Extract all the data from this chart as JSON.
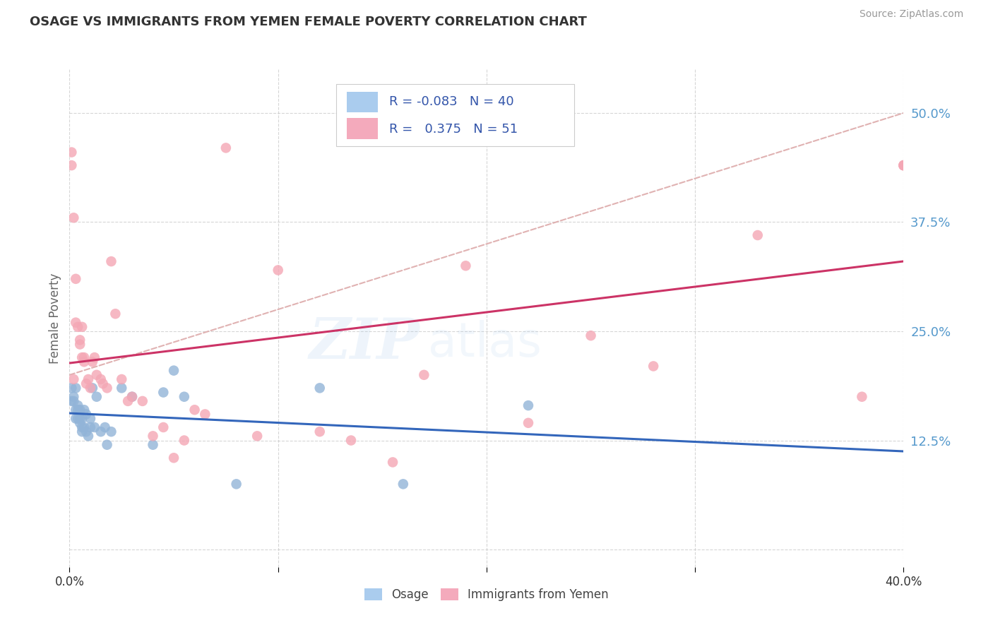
{
  "title": "OSAGE VS IMMIGRANTS FROM YEMEN FEMALE POVERTY CORRELATION CHART",
  "source": "Source: ZipAtlas.com",
  "ylabel": "Female Poverty",
  "xlim": [
    0.0,
    0.4
  ],
  "ylim": [
    -0.02,
    0.55
  ],
  "ytick_labels_right": [
    "12.5%",
    "25.0%",
    "37.5%",
    "50.0%"
  ],
  "ytick_vals_right": [
    0.125,
    0.25,
    0.375,
    0.5
  ],
  "blue_color": "#92B4D8",
  "pink_color": "#F4A7B5",
  "blue_line_color": "#3366BB",
  "pink_line_color": "#CC3366",
  "dashed_line_color": "#DDAAAA",
  "watermark_zip": "ZIP",
  "watermark_atlas": "atlas",
  "osage_x": [
    0.001,
    0.001,
    0.002,
    0.002,
    0.003,
    0.003,
    0.003,
    0.004,
    0.004,
    0.004,
    0.005,
    0.005,
    0.005,
    0.006,
    0.006,
    0.006,
    0.007,
    0.007,
    0.008,
    0.008,
    0.009,
    0.01,
    0.01,
    0.011,
    0.012,
    0.013,
    0.015,
    0.017,
    0.018,
    0.02,
    0.025,
    0.03,
    0.04,
    0.045,
    0.05,
    0.055,
    0.08,
    0.12,
    0.16,
    0.22
  ],
  "osage_y": [
    0.185,
    0.17,
    0.17,
    0.175,
    0.15,
    0.16,
    0.185,
    0.15,
    0.16,
    0.165,
    0.145,
    0.15,
    0.16,
    0.135,
    0.14,
    0.15,
    0.14,
    0.16,
    0.135,
    0.155,
    0.13,
    0.14,
    0.15,
    0.185,
    0.14,
    0.175,
    0.135,
    0.14,
    0.12,
    0.135,
    0.185,
    0.175,
    0.12,
    0.18,
    0.205,
    0.175,
    0.075,
    0.185,
    0.075,
    0.165
  ],
  "yemen_x": [
    0.001,
    0.001,
    0.002,
    0.002,
    0.003,
    0.003,
    0.004,
    0.005,
    0.005,
    0.006,
    0.006,
    0.007,
    0.007,
    0.008,
    0.009,
    0.01,
    0.011,
    0.012,
    0.013,
    0.015,
    0.016,
    0.018,
    0.02,
    0.022,
    0.025,
    0.028,
    0.03,
    0.035,
    0.04,
    0.045,
    0.05,
    0.055,
    0.06,
    0.065,
    0.075,
    0.09,
    0.1,
    0.12,
    0.135,
    0.155,
    0.17,
    0.19,
    0.22,
    0.25,
    0.28,
    0.33,
    0.38,
    0.4,
    0.4,
    0.4,
    0.4
  ],
  "yemen_y": [
    0.44,
    0.455,
    0.195,
    0.38,
    0.31,
    0.26,
    0.255,
    0.235,
    0.24,
    0.255,
    0.22,
    0.22,
    0.215,
    0.19,
    0.195,
    0.185,
    0.215,
    0.22,
    0.2,
    0.195,
    0.19,
    0.185,
    0.33,
    0.27,
    0.195,
    0.17,
    0.175,
    0.17,
    0.13,
    0.14,
    0.105,
    0.125,
    0.16,
    0.155,
    0.46,
    0.13,
    0.32,
    0.135,
    0.125,
    0.1,
    0.2,
    0.325,
    0.145,
    0.245,
    0.21,
    0.36,
    0.175,
    0.44,
    0.44,
    0.44,
    0.44
  ]
}
